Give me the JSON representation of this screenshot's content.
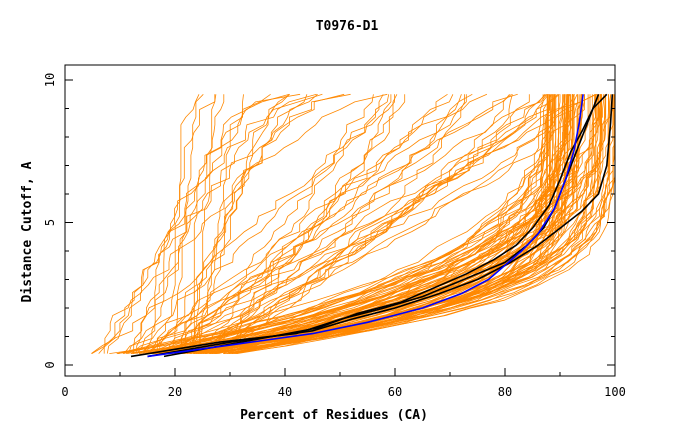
{
  "chart_data": {
    "type": "line",
    "title": "T0976-D1",
    "xlabel": "Percent of Residues (CA)",
    "ylabel": "Distance Cutoff, A",
    "xlim": [
      0,
      100
    ],
    "ylim": [
      0,
      10
    ],
    "x_ticks": [
      "0",
      "20",
      "40",
      "60",
      "80",
      "100"
    ],
    "y_ticks": [
      "0",
      "5",
      "10"
    ],
    "grid": false,
    "legend": "none",
    "colors": {
      "background_models": "#ff8800",
      "black_models": "#000000",
      "blue_model": "#0000ff"
    },
    "background_series_count": 140,
    "background_families": [
      {
        "name": "steep",
        "count": 18,
        "x_at_0_4": [
          5,
          25
        ],
        "x_at_9_5": [
          22,
          60
        ]
      },
      {
        "name": "diagonal",
        "count": 30,
        "x_at_0_4": [
          6,
          30
        ],
        "x_at_9_5": [
          55,
          96
        ]
      },
      {
        "name": "mid",
        "count": 40,
        "x_at_0_4": [
          8,
          30
        ],
        "x_at_9_5": [
          86,
          100
        ]
      },
      {
        "name": "accurate",
        "count": 52,
        "x_at_0_4": [
          15,
          32
        ],
        "x_at_9_5": [
          87,
          100
        ]
      }
    ],
    "series": [
      {
        "color": "#0000ff",
        "points": [
          [
            15,
            0.3
          ],
          [
            30,
            0.7
          ],
          [
            45,
            1.1
          ],
          [
            55,
            1.5
          ],
          [
            65,
            2.0
          ],
          [
            72,
            2.5
          ],
          [
            77,
            3.0
          ],
          [
            80,
            3.5
          ],
          [
            83,
            4.0
          ],
          [
            86,
            4.6
          ],
          [
            89,
            5.5
          ],
          [
            91,
            6.5
          ],
          [
            92.5,
            7.5
          ],
          [
            93.5,
            8.5
          ],
          [
            94.2,
            9.5
          ]
        ]
      },
      {
        "color": "#000000",
        "points": [
          [
            12,
            0.3
          ],
          [
            28,
            0.8
          ],
          [
            42,
            1.1
          ],
          [
            50,
            1.6
          ],
          [
            58,
            2.0
          ],
          [
            65,
            2.4
          ],
          [
            70,
            2.8
          ],
          [
            75,
            3.2
          ],
          [
            80,
            3.6
          ],
          [
            84,
            4.2
          ],
          [
            87,
            4.8
          ],
          [
            89,
            5.5
          ],
          [
            91,
            6.5
          ],
          [
            93,
            7.5
          ],
          [
            95,
            8.5
          ],
          [
            97,
            9.5
          ]
        ]
      },
      {
        "color": "#000000",
        "points": [
          [
            15,
            0.3
          ],
          [
            30,
            0.8
          ],
          [
            45,
            1.2
          ],
          [
            52,
            1.6
          ],
          [
            60,
            2.0
          ],
          [
            68,
            2.5
          ],
          [
            75,
            3.0
          ],
          [
            81,
            3.6
          ],
          [
            86,
            4.2
          ],
          [
            90,
            4.8
          ],
          [
            94,
            5.4
          ],
          [
            97,
            6.0
          ],
          [
            98.5,
            7.0
          ],
          [
            99.2,
            8.5
          ],
          [
            99.5,
            9.5
          ]
        ]
      },
      {
        "color": "#000000",
        "points": [
          [
            18,
            0.3
          ],
          [
            32,
            0.8
          ],
          [
            46,
            1.3
          ],
          [
            53,
            1.8
          ],
          [
            61,
            2.2
          ],
          [
            67,
            2.7
          ],
          [
            73,
            3.2
          ],
          [
            78,
            3.7
          ],
          [
            82,
            4.2
          ],
          [
            85,
            4.8
          ],
          [
            88,
            5.6
          ],
          [
            90,
            6.5
          ],
          [
            92,
            7.5
          ],
          [
            94,
            8.2
          ],
          [
            96,
            9.0
          ],
          [
            98.5,
            9.5
          ]
        ]
      }
    ]
  }
}
